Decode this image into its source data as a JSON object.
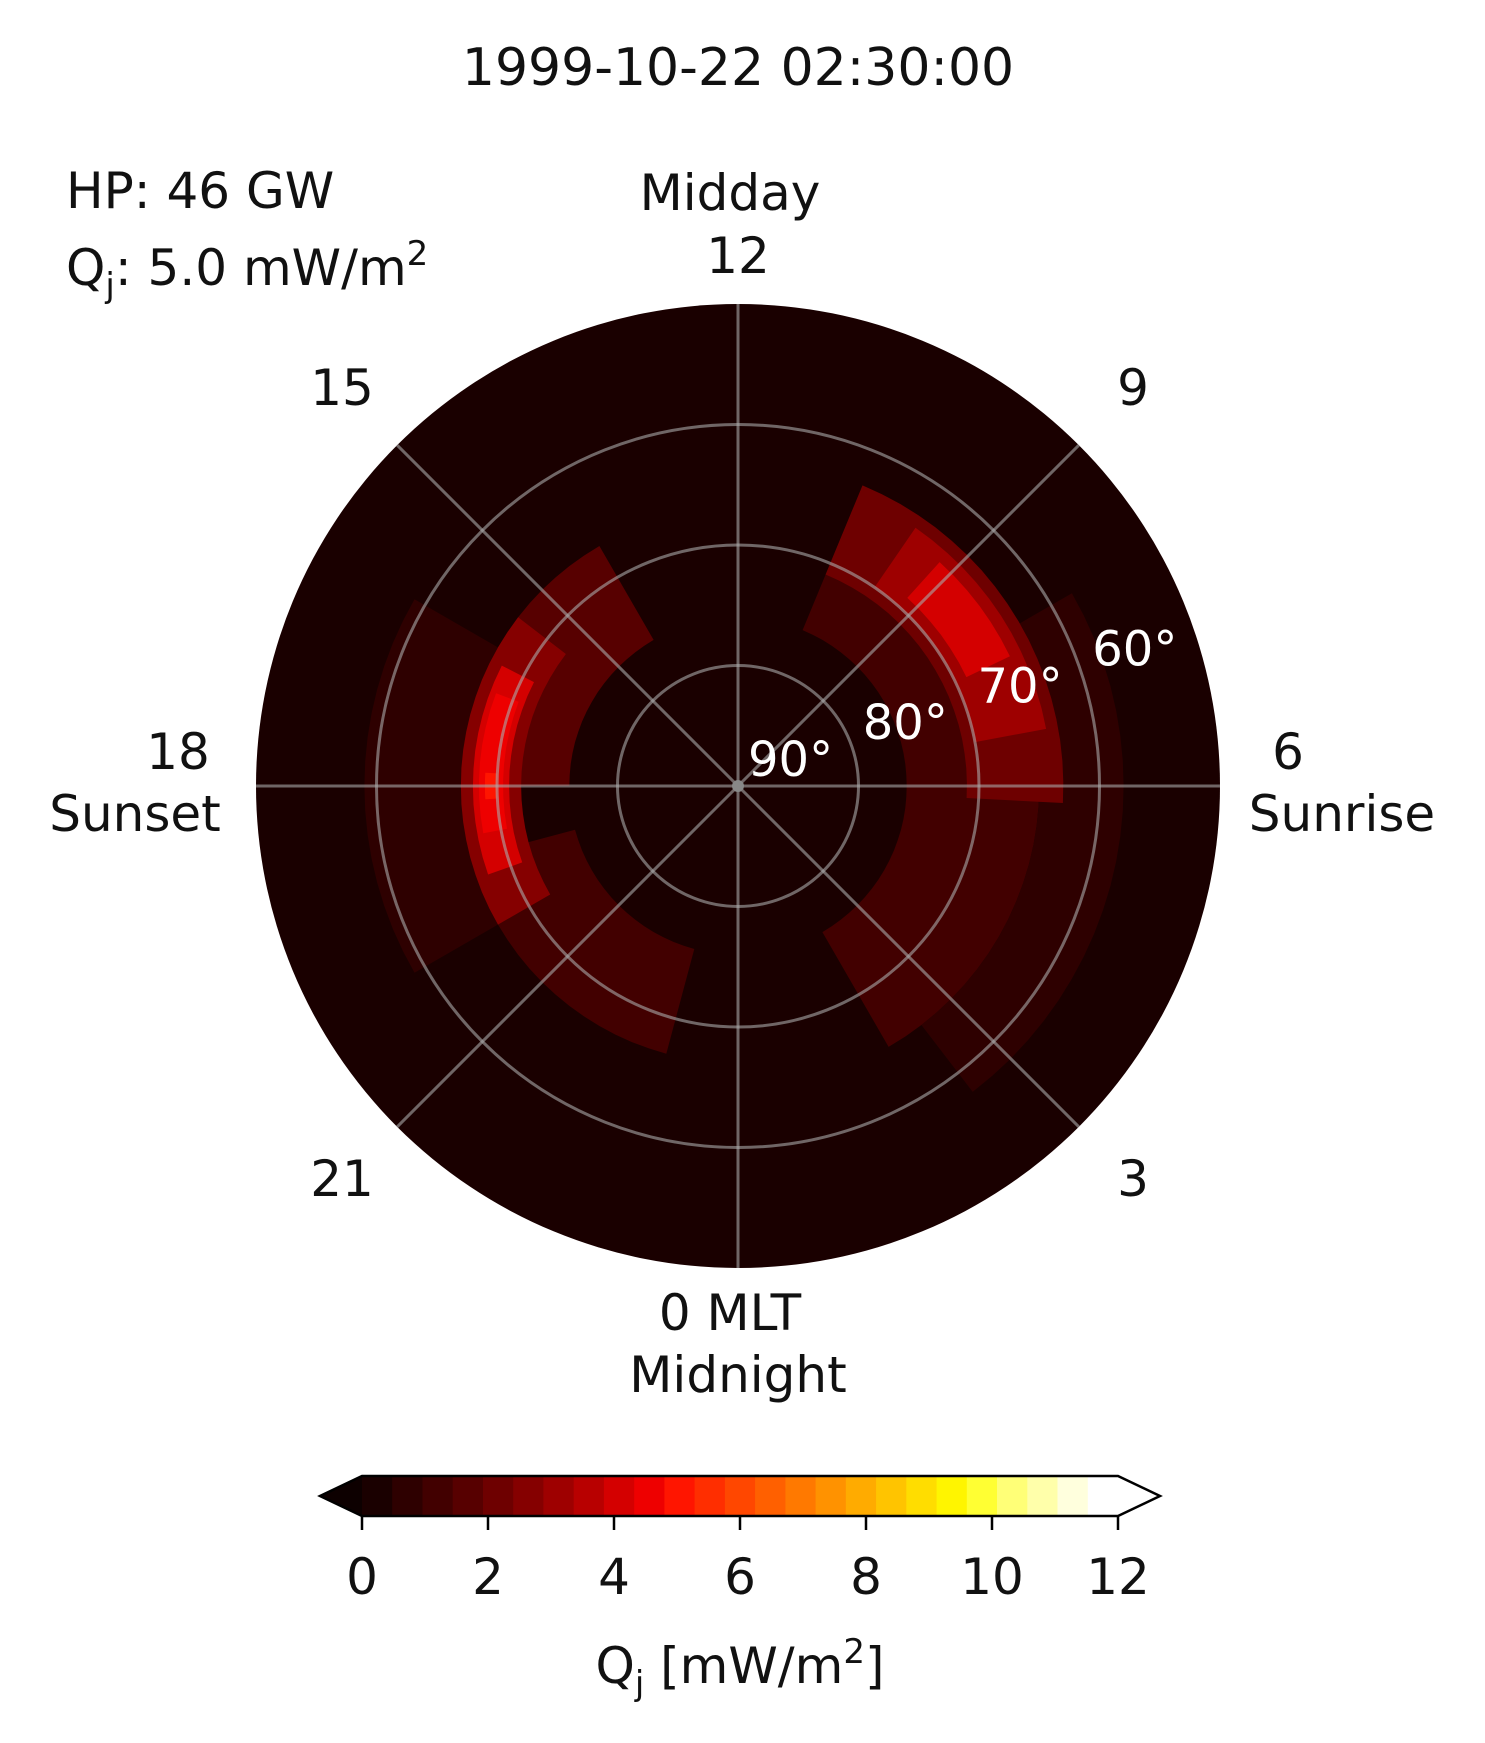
{
  "chart_data": {
    "type": "heatmap",
    "title": "1999-10-22 02:30:00",
    "stats": {
      "hp_label": "HP: 46 GW",
      "qj_prefix": "Q",
      "qj_sub": "j",
      "qj_value": ": 5.0 mW/m",
      "qj_sup": "2"
    },
    "projection": "polar, north-pole centered",
    "latitude_range": [
      50,
      90
    ],
    "mlt_labels": {
      "top_word": "Midday",
      "top_num": "12",
      "right_num": "6",
      "right_word": "Sunrise",
      "bottom_num": "0 MLT",
      "bottom_word": "Midnight",
      "left_num": "18",
      "left_word": "Sunset",
      "upper_right": "9",
      "lower_right": "3",
      "lower_left": "21",
      "upper_left": "15"
    },
    "latitude_labels": [
      "90°",
      "80°",
      "70°",
      "60°"
    ],
    "grid": true,
    "colorbar": {
      "min": 0,
      "max": 12,
      "ticks": [
        "0",
        "2",
        "4",
        "6",
        "8",
        "10",
        "12"
      ],
      "label_prefix": "Q",
      "label_sub": "j",
      "label_mid": " [mW/m",
      "label_sup": "2",
      "label_end": "]",
      "extend": "both",
      "colors": [
        "#1a0000",
        "#2e0000",
        "#420000",
        "#570000",
        "#6e0000",
        "#850000",
        "#9e0000",
        "#b80000",
        "#d40000",
        "#ee0000",
        "#ff1500",
        "#ff2e00",
        "#ff4700",
        "#ff6000",
        "#ff7900",
        "#ff9200",
        "#ffab00",
        "#ffc400",
        "#ffdd00",
        "#fff500",
        "#ffff33",
        "#ffff77",
        "#ffffaa",
        "#ffffdd",
        "#ffffff"
      ],
      "under_color": "#0d0000",
      "over_color": "#ffffff"
    },
    "series": [
      {
        "values": [
          {
            "mlt_start": 18.0,
            "mlt_end": 22.0,
            "colat_inner": 14,
            "colat_outer": 23,
            "value": 1.6
          },
          {
            "mlt_start": 13.0,
            "mlt_end": 17.0,
            "colat_inner": 14,
            "colat_outer": 23,
            "value": 1.4
          },
          {
            "mlt_start": 16.0,
            "mlt_end": 20.0,
            "colat_inner": 20,
            "colat_outer": 31,
            "value": 0.8
          },
          {
            "mlt_start": 1.5,
            "mlt_end": 10.0,
            "colat_inner": 14,
            "colat_outer": 25,
            "value": 1.3
          },
          {
            "mlt_start": 4.0,
            "mlt_end": 9.5,
            "colat_inner": 25,
            "colat_outer": 32,
            "value": 0.8
          },
          {
            "mlt_start": 16.0,
            "mlt_end": 20.5,
            "colat_inner": 18,
            "colat_outer": 23,
            "value": 2.8
          },
          {
            "mlt_start": 16.7,
            "mlt_end": 19.8,
            "colat_inner": 19,
            "colat_outer": 22,
            "value": 3.9
          },
          {
            "mlt_start": 17.3,
            "mlt_end": 19.4,
            "colat_inner": 19.5,
            "colat_outer": 21.5,
            "value": 4.4
          },
          {
            "mlt_start": 17.8,
            "mlt_end": 18.2,
            "colat_inner": 20,
            "colat_outer": 21,
            "value": 5.0
          },
          {
            "mlt_start": 1.5,
            "mlt_end": 6.2,
            "colat_inner": 19,
            "colat_outer": 27,
            "value": 2.2
          },
          {
            "mlt_start": 2.3,
            "mlt_end": 5.3,
            "colat_inner": 20,
            "colat_outer": 26,
            "value": 3.2
          },
          {
            "mlt_start": 2.8,
            "mlt_end": 4.3,
            "colat_inner": 21,
            "colat_outer": 25,
            "value": 3.9
          }
        ]
      }
    ]
  }
}
